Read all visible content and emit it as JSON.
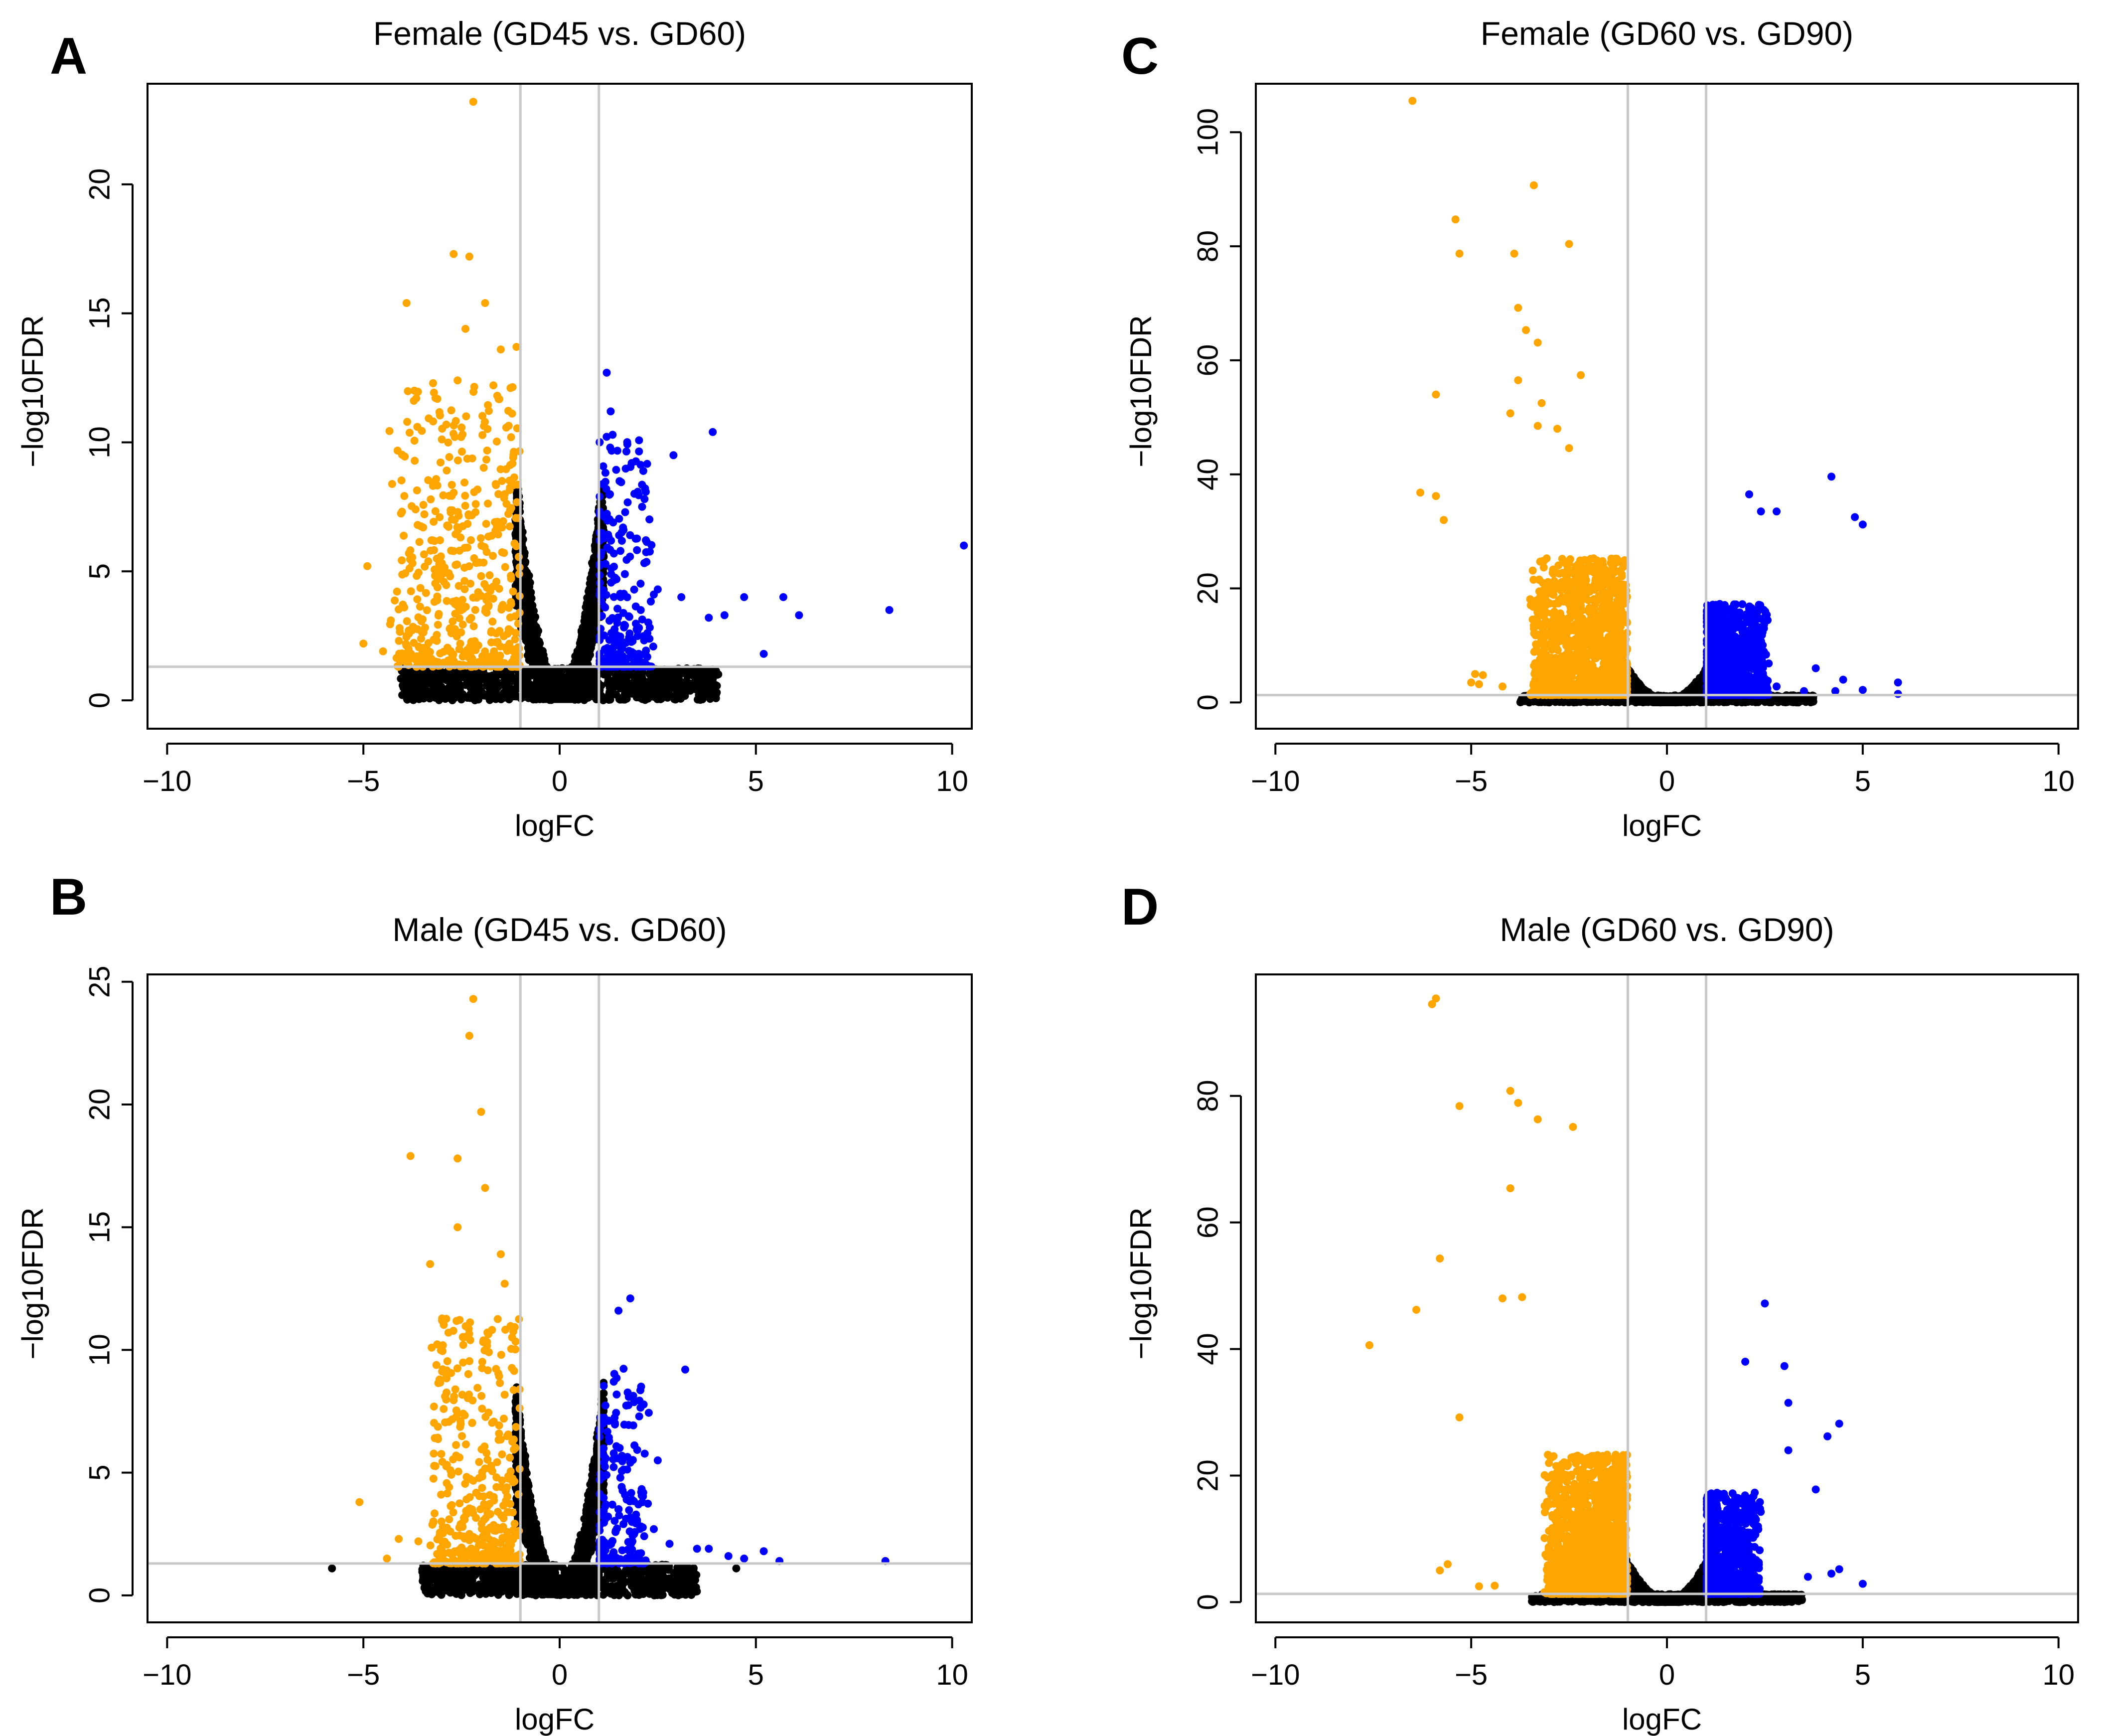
{
  "figure": {
    "colors": {
      "down": "#FFA500",
      "up": "#0000FF",
      "ns": "#000000",
      "ref": "#C8C8C8",
      "frame": "#000000"
    }
  },
  "chart_data": [
    {
      "id": "A",
      "type": "scatter",
      "letter": "A",
      "title": "Female (GD45 vs. GD60)",
      "xlabel": "logFC",
      "ylabel": "−log10FDR",
      "xlim": [
        -10.5,
        10.5
      ],
      "ylim": [
        -1.1,
        23.9
      ],
      "xticks": [
        -10,
        -5,
        0,
        5,
        10
      ],
      "xtick_labels": [
        "−10",
        "−5",
        "0",
        "5",
        "10"
      ],
      "yticks": [
        0,
        5,
        10,
        15,
        20
      ],
      "ytick_labels": [
        "0",
        "5",
        "10",
        "15",
        "20"
      ],
      "vlines": [
        -1,
        1
      ],
      "hline": 1.3,
      "outliers": {
        "down": [
          [
            -2.2,
            23.2
          ],
          [
            -2.7,
            17.3
          ],
          [
            -2.3,
            17.2
          ],
          [
            -3.9,
            15.4
          ],
          [
            -1.9,
            15.4
          ],
          [
            -2.4,
            14.4
          ],
          [
            -1.5,
            13.6
          ],
          [
            -1.1,
            13.7
          ],
          [
            -2.6,
            12.4
          ],
          [
            -4.9,
            5.2
          ],
          [
            -5.0,
            2.2
          ],
          [
            -4.3,
            3.1
          ],
          [
            -3.9,
            2.5
          ],
          [
            -4.5,
            1.9
          ]
        ],
        "up": [
          [
            1.2,
            12.7
          ],
          [
            1.3,
            11.2
          ],
          [
            3.9,
            10.4
          ],
          [
            2.9,
            9.5
          ],
          [
            10.3,
            6.0
          ],
          [
            8.4,
            3.5
          ],
          [
            6.1,
            3.3
          ],
          [
            5.7,
            4.0
          ],
          [
            4.7,
            4.0
          ],
          [
            5.2,
            1.8
          ],
          [
            4.2,
            3.3
          ],
          [
            3.8,
            3.2
          ],
          [
            3.1,
            4.0
          ],
          [
            2.5,
            4.3
          ],
          [
            2.4,
            4.1
          ]
        ],
        "ns": [
          [
            3.2,
            1.2
          ],
          [
            2.8,
            0.9
          ],
          [
            -3.5,
            0.8
          ]
        ]
      },
      "sim": {
        "n": 2600,
        "width": 0.9,
        "curv": 3.8,
        "spread": 1.9,
        "downLow": -1.1,
        "downHigh": -4.2,
        "downMax": 11,
        "upLow": 1.0,
        "upHigh": 2.3,
        "upMax": 9,
        "nDown": 520,
        "nUp": 260,
        "seed": 11
      }
    },
    {
      "id": "B",
      "type": "scatter",
      "letter": "B",
      "title": "Male (GD45 vs. GD60)",
      "xlabel": "logFC",
      "ylabel": "−log10FDR",
      "xlim": [
        -10.5,
        10.5
      ],
      "ylim": [
        -1.1,
        25.3
      ],
      "xticks": [
        -10,
        -5,
        0,
        5,
        10
      ],
      "xtick_labels": [
        "−10",
        "−5",
        "0",
        "5",
        "10"
      ],
      "yticks": [
        0,
        5,
        10,
        15,
        20,
        25
      ],
      "ytick_labels": [
        "0",
        "5",
        "10",
        "15",
        "20",
        "25"
      ],
      "vlines": [
        -1,
        1
      ],
      "hline": 1.3,
      "outliers": {
        "down": [
          [
            -2.2,
            24.3
          ],
          [
            -2.3,
            22.8
          ],
          [
            -2.0,
            19.7
          ],
          [
            -3.8,
            17.9
          ],
          [
            -2.6,
            17.8
          ],
          [
            -1.9,
            16.6
          ],
          [
            -2.6,
            15.0
          ],
          [
            -3.3,
            13.5
          ],
          [
            -1.5,
            13.9
          ],
          [
            -1.4,
            12.7
          ],
          [
            -5.1,
            3.8
          ],
          [
            -4.1,
            2.3
          ],
          [
            -4.4,
            1.5
          ],
          [
            -3.6,
            2.2
          ]
        ],
        "up": [
          [
            1.8,
            12.1
          ],
          [
            1.5,
            11.6
          ],
          [
            3.2,
            9.2
          ],
          [
            2.5,
            5.5
          ],
          [
            2.4,
            2.7
          ],
          [
            2.8,
            2.1
          ],
          [
            3.5,
            1.9
          ],
          [
            3.8,
            1.9
          ],
          [
            4.3,
            1.6
          ],
          [
            4.7,
            1.5
          ],
          [
            5.2,
            1.8
          ],
          [
            5.6,
            1.4
          ],
          [
            8.3,
            1.4
          ]
        ],
        "ns": [
          [
            -5.8,
            1.1
          ],
          [
            4.5,
            1.1
          ],
          [
            -3.2,
            0.9
          ]
        ]
      },
      "sim": {
        "n": 2600,
        "width": 0.9,
        "curv": 3.6,
        "spread": 1.8,
        "downLow": -1.1,
        "downHigh": -3.2,
        "downMax": 10,
        "upLow": 1.0,
        "upHigh": 2.2,
        "upMax": 8,
        "nDown": 420,
        "nUp": 220,
        "seed": 23
      }
    },
    {
      "id": "C",
      "type": "scatter",
      "letter": "C",
      "title": "Female (GD60 vs. GD90)",
      "xlabel": "logFC",
      "ylabel": "−log10FDR",
      "xlim": [
        -10.5,
        10.5
      ],
      "ylim": [
        -4.6,
        108.5
      ],
      "xticks": [
        -10,
        -5,
        0,
        5,
        10
      ],
      "xtick_labels": [
        "−10",
        "−5",
        "0",
        "5",
        "10"
      ],
      "yticks": [
        0,
        20,
        40,
        60,
        80,
        100
      ],
      "ytick_labels": [
        "0",
        "20",
        "40",
        "60",
        "80",
        "100"
      ],
      "vlines": [
        -1,
        1
      ],
      "hline": 1.3,
      "outliers": {
        "down": [
          [
            -6.5,
            105.5
          ],
          [
            -3.4,
            90.7
          ],
          [
            -5.4,
            84.7
          ],
          [
            -5.3,
            78.7
          ],
          [
            -3.9,
            78.7
          ],
          [
            -2.5,
            80.4
          ],
          [
            -3.8,
            69.2
          ],
          [
            -3.6,
            65.3
          ],
          [
            -3.3,
            63.1
          ],
          [
            -3.8,
            56.5
          ],
          [
            -2.2,
            57.4
          ],
          [
            -5.9,
            54.0
          ],
          [
            -3.2,
            52.5
          ],
          [
            -4.0,
            50.7
          ],
          [
            -3.3,
            48.5
          ],
          [
            -2.8,
            48.0
          ],
          [
            -2.5,
            44.6
          ],
          [
            -6.3,
            36.8
          ],
          [
            -5.9,
            36.2
          ],
          [
            -5.7,
            32.0
          ],
          [
            -4.9,
            5.0
          ],
          [
            -4.7,
            4.8
          ],
          [
            -5.0,
            3.5
          ],
          [
            -4.8,
            3.2
          ],
          [
            -4.2,
            2.8
          ]
        ],
        "up": [
          [
            4.2,
            39.6
          ],
          [
            2.1,
            36.5
          ],
          [
            2.4,
            33.5
          ],
          [
            4.8,
            32.5
          ],
          [
            5.0,
            31.2
          ],
          [
            2.8,
            33.5
          ],
          [
            3.8,
            6.0
          ],
          [
            4.5,
            4.0
          ],
          [
            5.9,
            3.5
          ],
          [
            5.0,
            2.2
          ],
          [
            3.5,
            2.0
          ],
          [
            4.3,
            2.0
          ],
          [
            5.9,
            1.5
          ],
          [
            2.8,
            2.8
          ]
        ],
        "ns": []
      },
      "sim": {
        "n": 2800,
        "width": 1.0,
        "curv": 3.0,
        "spread": 1.6,
        "downLow": -1.1,
        "downHigh": -3.4,
        "downMax": 24,
        "upLow": 1.0,
        "upHigh": 2.5,
        "upMax": 16,
        "nDown": 1300,
        "nUp": 1000,
        "seed": 37
      }
    },
    {
      "id": "D",
      "type": "scatter",
      "letter": "D",
      "title": "Male (GD60 vs. GD90)",
      "xlabel": "logFC",
      "ylabel": "−log10FDR",
      "xlim": [
        -10.5,
        10.5
      ],
      "ylim": [
        -3.2,
        99.2
      ],
      "xticks": [
        -10,
        -5,
        0,
        5,
        10
      ],
      "xtick_labels": [
        "−10",
        "−5",
        "0",
        "5",
        "10"
      ],
      "yticks": [
        0,
        20,
        40,
        60,
        80
      ],
      "ytick_labels": [
        "0",
        "20",
        "40",
        "60",
        "80"
      ],
      "vlines": [
        -1,
        1
      ],
      "hline": 1.3,
      "outliers": {
        "down": [
          [
            -5.9,
            95.4
          ],
          [
            -6.0,
            94.5
          ],
          [
            -5.3,
            78.4
          ],
          [
            -4.0,
            80.8
          ],
          [
            -3.8,
            78.9
          ],
          [
            -3.3,
            76.3
          ],
          [
            -2.4,
            75.1
          ],
          [
            -4.0,
            65.4
          ],
          [
            -6.4,
            46.2
          ],
          [
            -5.8,
            54.3
          ],
          [
            -7.6,
            40.6
          ],
          [
            -4.2,
            48.0
          ],
          [
            -3.7,
            48.2
          ],
          [
            -5.3,
            29.2
          ],
          [
            -5.8,
            5.0
          ],
          [
            -5.6,
            6.0
          ],
          [
            -4.8,
            2.5
          ],
          [
            -4.4,
            2.6
          ]
        ],
        "up": [
          [
            2.0,
            38.0
          ],
          [
            2.5,
            47.2
          ],
          [
            3.0,
            37.3
          ],
          [
            3.1,
            31.5
          ],
          [
            4.4,
            28.2
          ],
          [
            4.1,
            26.2
          ],
          [
            3.1,
            24.0
          ],
          [
            3.8,
            17.8
          ],
          [
            5.0,
            2.9
          ],
          [
            4.4,
            5.2
          ],
          [
            4.2,
            4.5
          ],
          [
            3.6,
            4.0
          ]
        ],
        "ns": []
      },
      "sim": {
        "n": 3000,
        "width": 1.0,
        "curv": 3.2,
        "spread": 1.5,
        "downLow": -1.1,
        "downHigh": -3.0,
        "downMax": 22,
        "upLow": 1.0,
        "upHigh": 2.3,
        "upMax": 16,
        "nDown": 1700,
        "nUp": 900,
        "seed": 53
      }
    }
  ]
}
